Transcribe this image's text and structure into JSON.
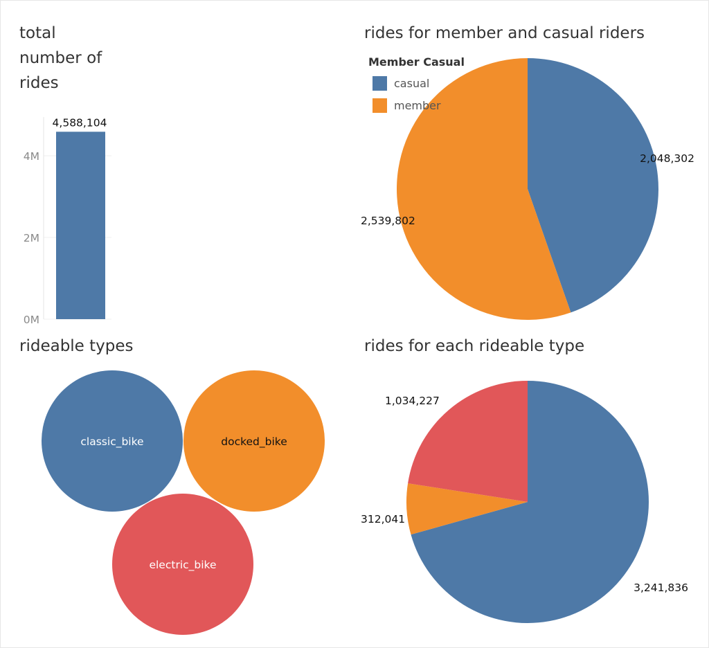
{
  "colors": {
    "blue": "#4e79a7",
    "orange": "#f28e2b",
    "red": "#e15759"
  },
  "chart_data": [
    {
      "type": "bar",
      "title": "total\nnumber of\nrides",
      "categories": [
        ""
      ],
      "values": [
        4588104
      ],
      "value_labels": [
        "4,588,104"
      ],
      "yticks": [
        {
          "value": 4000000,
          "label": "4M"
        },
        {
          "value": 2000000,
          "label": "2M"
        },
        {
          "value": 0,
          "label": "0M"
        }
      ],
      "ylim": [
        0,
        4588104
      ]
    },
    {
      "type": "pie",
      "title": "rides for member and casual riders",
      "legend_title": "Member Casual",
      "legend_position": "top-left",
      "categories": [
        "casual",
        "member"
      ],
      "values": [
        2048302,
        2539802
      ],
      "value_labels": [
        "2,048,302",
        "2,539,802"
      ],
      "colors": [
        "#4e79a7",
        "#f28e2b"
      ]
    },
    {
      "type": "bubble",
      "title": "rideable types",
      "categories": [
        "classic_bike",
        "docked_bike",
        "electric_bike"
      ],
      "colors": [
        "#4e79a7",
        "#f28e2b",
        "#e15759"
      ]
    },
    {
      "type": "pie",
      "title": "rides for each rideable type",
      "categories": [
        "classic_bike",
        "docked_bike",
        "electric_bike"
      ],
      "values": [
        3241836,
        312041,
        1034227
      ],
      "value_labels": [
        "3,241,836",
        "312,041",
        "1,034,227"
      ],
      "colors": [
        "#4e79a7",
        "#f28e2b",
        "#e15759"
      ]
    }
  ]
}
